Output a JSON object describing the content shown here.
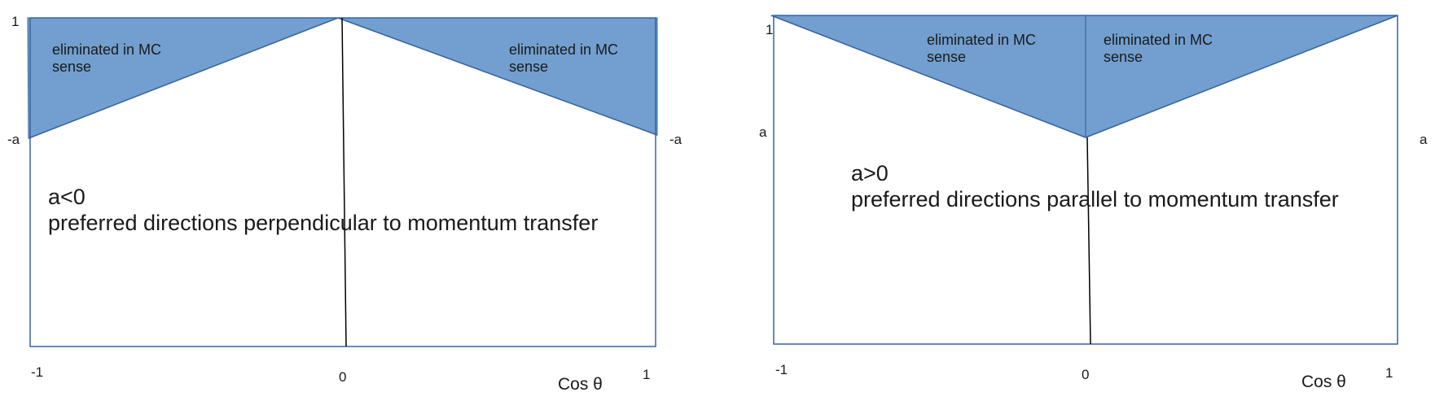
{
  "left_panel": {
    "y_top": "1",
    "y_left_mid": "-a",
    "y_right_mid": "-a",
    "x_min": "-1",
    "x_mid": "0",
    "x_max": "1",
    "x_axis_title": "Cos θ",
    "region_left": [
      "eliminated in MC",
      "sense"
    ],
    "region_right": [
      "eliminated in MC",
      "sense"
    ],
    "caption": [
      "a<0",
      "preferred directions perpendicular to momentum transfer"
    ]
  },
  "right_panel": {
    "y_top": "1",
    "y_left_mid": "a",
    "y_right_mid": "a",
    "x_min": "-1",
    "x_mid": "0",
    "x_max": "1",
    "x_axis_title": "Cos θ",
    "region_left": [
      "eliminated in MC",
      "sense"
    ],
    "region_right": [
      "eliminated in MC",
      "sense"
    ],
    "caption": [
      "a>0",
      "preferred directions parallel to momentum transfer"
    ]
  },
  "colors": {
    "fill": "#729fcf",
    "border": "#3465a4",
    "line": "#000000"
  }
}
